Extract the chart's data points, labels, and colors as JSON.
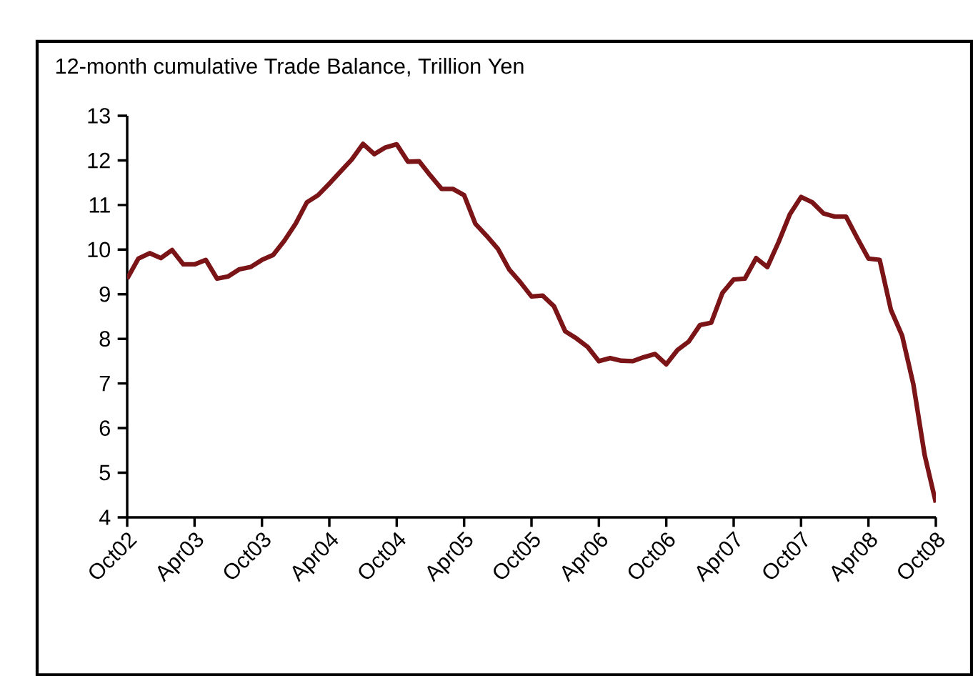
{
  "chart_data": {
    "type": "line",
    "title": "12-month cumulative Trade Balance, Trillion Yen",
    "x": [
      "2002-10",
      "2002-11",
      "2002-12",
      "2003-01",
      "2003-02",
      "2003-03",
      "2003-04",
      "2003-05",
      "2003-06",
      "2003-07",
      "2003-08",
      "2003-09",
      "2003-10",
      "2003-11",
      "2003-12",
      "2004-01",
      "2004-02",
      "2004-03",
      "2004-04",
      "2004-05",
      "2004-06",
      "2004-07",
      "2004-08",
      "2004-09",
      "2004-10",
      "2004-11",
      "2004-12",
      "2005-01",
      "2005-02",
      "2005-03",
      "2005-04",
      "2005-05",
      "2005-06",
      "2005-07",
      "2005-08",
      "2005-09",
      "2005-10",
      "2005-11",
      "2005-12",
      "2006-01",
      "2006-02",
      "2006-03",
      "2006-04",
      "2006-05",
      "2006-06",
      "2006-07",
      "2006-08",
      "2006-09",
      "2006-10",
      "2006-11",
      "2006-12",
      "2007-01",
      "2007-02",
      "2007-03",
      "2007-04",
      "2007-05",
      "2007-06",
      "2007-07",
      "2007-08",
      "2007-09",
      "2007-10",
      "2007-11",
      "2007-12",
      "2008-01",
      "2008-02",
      "2008-03",
      "2008-04",
      "2008-05",
      "2008-06",
      "2008-07",
      "2008-08",
      "2008-09",
      "2008-10"
    ],
    "series": [
      {
        "color": "#7b1416",
        "values": [
          9.35,
          9.8,
          9.92,
          9.81,
          9.99,
          9.67,
          9.67,
          9.77,
          9.35,
          9.4,
          9.56,
          9.61,
          9.77,
          9.88,
          10.2,
          10.58,
          11.06,
          11.22,
          11.48,
          11.75,
          12.02,
          12.37,
          12.14,
          12.29,
          12.36,
          11.97,
          11.98,
          11.66,
          11.36,
          11.36,
          11.22,
          10.58,
          10.31,
          10.02,
          9.56,
          9.27,
          8.95,
          8.97,
          8.73,
          8.17,
          8.01,
          7.82,
          7.5,
          7.57,
          7.51,
          7.5,
          7.59,
          7.66,
          7.43,
          7.75,
          7.94,
          8.31,
          8.36,
          9.03,
          9.33,
          9.35,
          9.81,
          9.61,
          10.17,
          10.79,
          11.18,
          11.06,
          10.81,
          10.74,
          10.74,
          10.26,
          9.8,
          9.77,
          8.65,
          8.07,
          6.98,
          5.4,
          4.33
        ]
      }
    ],
    "xlim": [
      "2002-10",
      "2008-10"
    ],
    "xticks": [
      {
        "value": "2002-10",
        "label": "Oct02"
      },
      {
        "value": "2003-04",
        "label": "Apr03"
      },
      {
        "value": "2003-10",
        "label": "Oct03"
      },
      {
        "value": "2004-04",
        "label": "Apr04"
      },
      {
        "value": "2004-10",
        "label": "Oct04"
      },
      {
        "value": "2005-04",
        "label": "Apr05"
      },
      {
        "value": "2005-10",
        "label": "Oct05"
      },
      {
        "value": "2006-04",
        "label": "Apr06"
      },
      {
        "value": "2006-10",
        "label": "Oct06"
      },
      {
        "value": "2007-04",
        "label": "Apr07"
      },
      {
        "value": "2007-10",
        "label": "Oct07"
      },
      {
        "value": "2008-04",
        "label": "Apr08"
      },
      {
        "value": "2008-10",
        "label": "Oct08"
      }
    ],
    "ylim": [
      4,
      13
    ],
    "yticks": [
      4,
      5,
      6,
      7,
      8,
      9,
      10,
      11,
      12,
      13
    ],
    "grid": false,
    "marker": "none",
    "line_style": "solid"
  }
}
